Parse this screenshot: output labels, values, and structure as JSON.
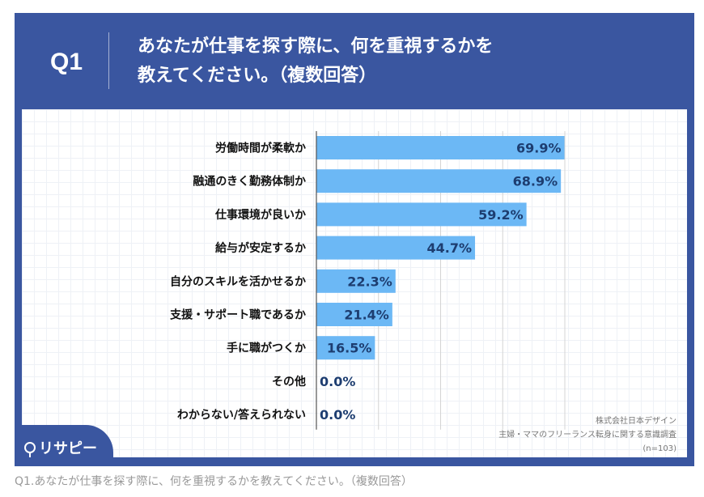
{
  "header": {
    "q_label": "Q1",
    "title_line1": "あなたが仕事を探す際に、何を重視するかを",
    "title_line2": "教えてください。（複数回答）"
  },
  "logo": {
    "text": "リサピー"
  },
  "source": {
    "company": "株式会社日本デザイン",
    "survey": "主婦・ママのフリーランス転身に関する意識調査",
    "n": "(n=103)"
  },
  "caption": "Q1.あなたが仕事を探す際に、何を重視するかを教えてください。（複数回答）",
  "colors": {
    "frame": "#3a56a0",
    "bar": "#6cb8f5",
    "value_text": "#1d3d70"
  },
  "chart_data": {
    "type": "bar",
    "orientation": "horizontal",
    "title": "あなたが仕事を探す際に、何を重視するかを教えてください。（複数回答）",
    "categories": [
      "労働時間が柔軟か",
      "融通のきく勤務体制か",
      "仕事環境が良いか",
      "給与が安定するか",
      "自分のスキルを活かせるか",
      "支援・サポート職であるか",
      "手に職がつくか",
      "その他",
      "わからない/答えられない"
    ],
    "values": [
      69.9,
      68.9,
      59.2,
      44.7,
      22.3,
      21.4,
      16.5,
      0.0,
      0.0
    ],
    "labels": [
      "69.9%",
      "68.9%",
      "59.2%",
      "44.7%",
      "22.3%",
      "21.4%",
      "16.5%",
      "0.0%",
      "0.0%"
    ],
    "xlim": [
      0,
      70
    ],
    "grid": true,
    "unit": "%"
  }
}
